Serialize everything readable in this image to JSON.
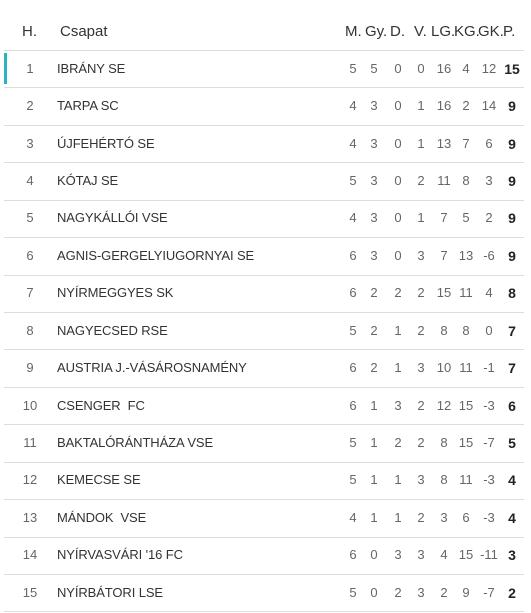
{
  "table": {
    "header": [
      "H.",
      "Csapat",
      "M.",
      "Gy.",
      "D.",
      "V.",
      "LG.",
      "KG.",
      "GK.",
      "P."
    ],
    "rows": [
      [
        1,
        "IBRÁNY SE",
        5,
        5,
        0,
        0,
        16,
        4,
        12,
        15
      ],
      [
        2,
        "TARPA SC",
        4,
        3,
        0,
        1,
        16,
        2,
        14,
        9
      ],
      [
        3,
        "ÚJFEHÉRTÓ SE",
        4,
        3,
        0,
        1,
        13,
        7,
        6,
        9
      ],
      [
        4,
        "KÓTAJ SE",
        5,
        3,
        0,
        2,
        11,
        8,
        3,
        9
      ],
      [
        5,
        "NAGYKÁLLÓI VSE",
        4,
        3,
        0,
        1,
        7,
        5,
        2,
        9
      ],
      [
        6,
        "AGNIS-GERGELYIUGORNYAI SE",
        6,
        3,
        0,
        3,
        7,
        13,
        -6,
        9
      ],
      [
        7,
        "NYÍRMEGGYES SK",
        6,
        2,
        2,
        2,
        15,
        11,
        4,
        8
      ],
      [
        8,
        "NAGYECSED RSE",
        5,
        2,
        1,
        2,
        8,
        8,
        0,
        7
      ],
      [
        9,
        "AUSTRIA J.-VÁSÁROSNAMÉNY",
        6,
        2,
        1,
        3,
        10,
        11,
        -1,
        7
      ],
      [
        10,
        "CSENGER  FC",
        6,
        1,
        3,
        2,
        12,
        15,
        -3,
        6
      ],
      [
        11,
        "BAKTALÓRÁNTHÁZA VSE",
        5,
        1,
        2,
        2,
        8,
        15,
        -7,
        5
      ],
      [
        12,
        "KEMECSE SE",
        5,
        1,
        1,
        3,
        8,
        11,
        -3,
        4
      ],
      [
        13,
        "MÁNDOK  VSE",
        4,
        1,
        1,
        2,
        3,
        6,
        -3,
        4
      ],
      [
        14,
        "NYÍRVASVÁRI '16 FC",
        6,
        0,
        3,
        3,
        4,
        15,
        -11,
        3
      ],
      [
        15,
        "NYÍRBÁTORI LSE",
        5,
        0,
        2,
        3,
        2,
        9,
        -7,
        2
      ]
    ]
  }
}
